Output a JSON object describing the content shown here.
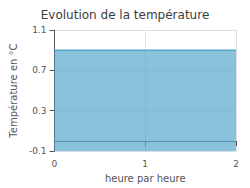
{
  "chart_data": {
    "type": "area",
    "title": "Evolution de la température",
    "xlabel": "heure par heure",
    "ylabel": "Température en °C",
    "x": [
      0,
      2
    ],
    "values": [
      0.9,
      0.9
    ],
    "color": "#55aacc",
    "xlim": [
      0,
      2
    ],
    "xticks": [
      0,
      1,
      2
    ],
    "ylim": [
      -0.1,
      1.1
    ],
    "yticks": [
      -0.1,
      0.3,
      0.7,
      1.1
    ],
    "grid": true
  }
}
